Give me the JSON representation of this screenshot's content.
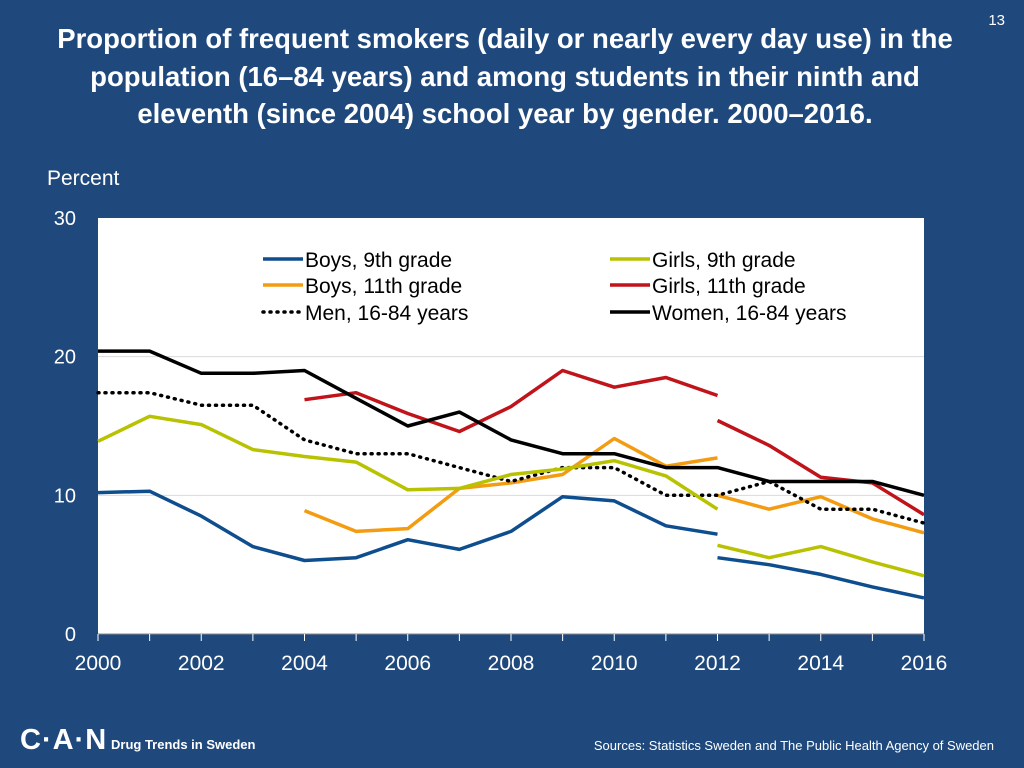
{
  "page": {
    "number": "13",
    "title": "Proportion of frequent smokers (daily or nearly every day use) in the population (16–84 years) and among students in their ninth and eleventh (since 2004) school year by gender. 2000–2016.",
    "footer_logo": "C·A·N",
    "footer_label": "Drug Trends in Sweden",
    "footer_sources": "Sources: Statistics Sweden and The Public Health Agency of Sweden"
  },
  "colors": {
    "background": "#1f497d",
    "plot_background": "#ffffff",
    "boys9": "#0e4d8e",
    "boys11": "#f39c12",
    "men": "#000000",
    "girls9": "#b8c200",
    "girls11": "#c0131a",
    "women": "#000000"
  },
  "chart_data": {
    "type": "line",
    "title": "Proportion of frequent smokers (daily or nearly every day use) in the population (16–84 years) and among students in their ninth and eleventh (since 2004) school year by gender. 2000–2016.",
    "xlabel": "",
    "ylabel": "Percent",
    "xlim": [
      2000,
      2016
    ],
    "ylim": [
      0,
      30
    ],
    "x_ticks": [
      "2000",
      "2002",
      "2004",
      "2006",
      "2008",
      "2010",
      "2012",
      "2014",
      "2016"
    ],
    "y_ticks": [
      "0",
      "10",
      "20",
      "30"
    ],
    "grid": true,
    "legend_position": "top",
    "series": [
      {
        "name": "Boys, 9th grade",
        "color_key": "boys9",
        "dashed": false,
        "segments": [
          [
            [
              2000,
              10.2
            ],
            [
              2001,
              10.3
            ],
            [
              2002,
              8.5
            ],
            [
              2003,
              6.3
            ],
            [
              2004,
              5.3
            ],
            [
              2005,
              5.5
            ],
            [
              2006,
              6.8
            ],
            [
              2007,
              6.1
            ],
            [
              2008,
              7.4
            ],
            [
              2009,
              9.9
            ],
            [
              2010,
              9.6
            ],
            [
              2011,
              7.8
            ],
            [
              2012,
              7.2
            ]
          ],
          [
            [
              2012,
              5.5
            ],
            [
              2013,
              5.0
            ],
            [
              2014,
              4.3
            ],
            [
              2015,
              3.4
            ],
            [
              2016,
              2.6
            ]
          ]
        ]
      },
      {
        "name": "Boys, 11th grade",
        "color_key": "boys11",
        "dashed": false,
        "segments": [
          [
            [
              2004,
              8.9
            ],
            [
              2005,
              7.4
            ],
            [
              2006,
              7.6
            ],
            [
              2007,
              10.5
            ],
            [
              2008,
              10.9
            ],
            [
              2009,
              11.5
            ],
            [
              2010,
              14.1
            ],
            [
              2011,
              12.1
            ],
            [
              2012,
              12.7
            ]
          ],
          [
            [
              2012,
              10.0
            ],
            [
              2013,
              9.0
            ],
            [
              2014,
              9.9
            ],
            [
              2015,
              8.3
            ],
            [
              2016,
              7.3
            ]
          ]
        ]
      },
      {
        "name": "Men, 16-84 years",
        "color_key": "men",
        "dashed": true,
        "segments": [
          [
            [
              2000,
              17.4
            ],
            [
              2001,
              17.4
            ],
            [
              2002,
              16.5
            ],
            [
              2003,
              16.5
            ],
            [
              2004,
              14.0
            ],
            [
              2005,
              13.0
            ],
            [
              2006,
              13.0
            ],
            [
              2007,
              12.0
            ],
            [
              2008,
              11.0
            ],
            [
              2009,
              12.0
            ],
            [
              2010,
              12.0
            ],
            [
              2011,
              10.0
            ],
            [
              2012,
              10.0
            ],
            [
              2013,
              11.0
            ],
            [
              2014,
              9.0
            ],
            [
              2015,
              9.0
            ],
            [
              2016,
              8.0
            ]
          ]
        ]
      },
      {
        "name": "Girls, 9th grade",
        "color_key": "girls9",
        "dashed": false,
        "segments": [
          [
            [
              2000,
              13.9
            ],
            [
              2001,
              15.7
            ],
            [
              2002,
              15.1
            ],
            [
              2003,
              13.3
            ],
            [
              2004,
              12.8
            ],
            [
              2005,
              12.4
            ],
            [
              2006,
              10.4
            ],
            [
              2007,
              10.5
            ],
            [
              2008,
              11.5
            ],
            [
              2009,
              11.9
            ],
            [
              2010,
              12.5
            ],
            [
              2011,
              11.4
            ],
            [
              2012,
              9.0
            ]
          ],
          [
            [
              2012,
              6.4
            ],
            [
              2013,
              5.5
            ],
            [
              2014,
              6.3
            ],
            [
              2015,
              5.2
            ],
            [
              2016,
              4.2
            ]
          ]
        ]
      },
      {
        "name": "Girls, 11th grade",
        "color_key": "girls11",
        "dashed": false,
        "segments": [
          [
            [
              2004,
              16.9
            ],
            [
              2005,
              17.4
            ],
            [
              2006,
              15.9
            ],
            [
              2007,
              14.6
            ],
            [
              2008,
              16.4
            ],
            [
              2009,
              19.0
            ],
            [
              2010,
              17.8
            ],
            [
              2011,
              18.5
            ],
            [
              2012,
              17.2
            ]
          ],
          [
            [
              2012,
              15.4
            ],
            [
              2013,
              13.6
            ],
            [
              2014,
              11.3
            ],
            [
              2015,
              10.9
            ],
            [
              2016,
              8.6
            ]
          ]
        ]
      },
      {
        "name": "Women, 16-84 years",
        "color_key": "women",
        "dashed": false,
        "segments": [
          [
            [
              2000,
              20.4
            ],
            [
              2001,
              20.4
            ],
            [
              2002,
              18.8
            ],
            [
              2003,
              18.8
            ],
            [
              2004,
              19.0
            ],
            [
              2005,
              17.0
            ],
            [
              2006,
              15.0
            ],
            [
              2007,
              16.0
            ],
            [
              2008,
              14.0
            ],
            [
              2009,
              13.0
            ],
            [
              2010,
              13.0
            ],
            [
              2011,
              12.0
            ],
            [
              2012,
              12.0
            ],
            [
              2013,
              11.0
            ],
            [
              2014,
              11.0
            ],
            [
              2015,
              11.0
            ],
            [
              2016,
              10.0
            ]
          ]
        ]
      }
    ]
  }
}
